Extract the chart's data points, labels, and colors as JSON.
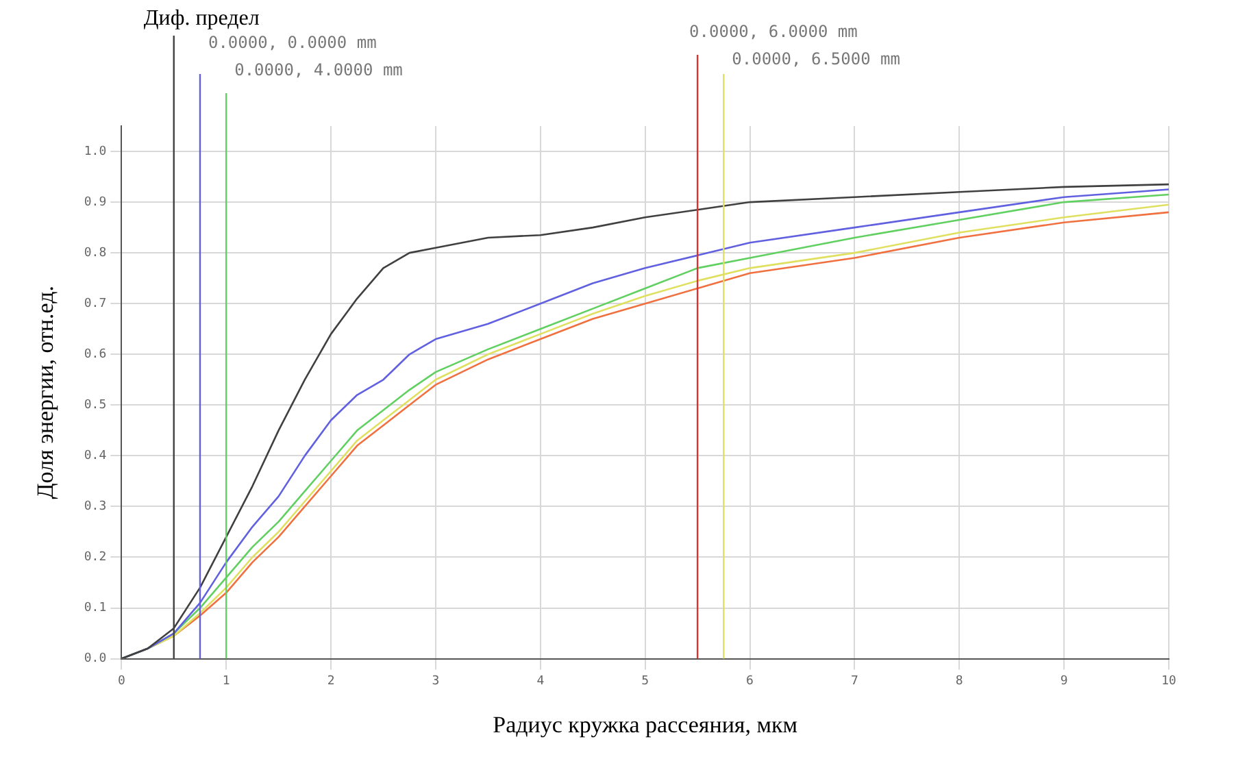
{
  "chart_data": {
    "type": "line",
    "xlabel": "Радиус кружка рассеяния, мкм",
    "ylabel": "Доля энергии, отн.ед.",
    "x": [
      0,
      0.25,
      0.5,
      0.75,
      1,
      1.25,
      1.5,
      1.75,
      2,
      2.25,
      2.5,
      2.75,
      3,
      3.5,
      4,
      4.5,
      5,
      5.5,
      6,
      7,
      8,
      9,
      10
    ],
    "series": [
      {
        "color": "#404040",
        "values": [
          0,
          0.02,
          0.06,
          0.14,
          0.24,
          0.34,
          0.45,
          0.55,
          0.64,
          0.71,
          0.77,
          0.8,
          0.81,
          0.83,
          0.835,
          0.85,
          0.87,
          0.885,
          0.9,
          0.91,
          0.92,
          0.93,
          0.935
        ]
      },
      {
        "color": "#6060e0",
        "values": [
          0,
          0.02,
          0.05,
          0.11,
          0.19,
          0.26,
          0.32,
          0.4,
          0.47,
          0.52,
          0.55,
          0.6,
          0.63,
          0.66,
          0.7,
          0.74,
          0.77,
          0.795,
          0.82,
          0.85,
          0.88,
          0.91,
          0.925
        ]
      },
      {
        "color": "#60d060",
        "values": [
          0,
          0.02,
          0.05,
          0.1,
          0.16,
          0.22,
          0.27,
          0.33,
          0.39,
          0.45,
          0.49,
          0.53,
          0.565,
          0.61,
          0.65,
          0.69,
          0.73,
          0.77,
          0.79,
          0.83,
          0.865,
          0.9,
          0.915
        ]
      },
      {
        "color": "#e0e060",
        "values": [
          0,
          0.02,
          0.045,
          0.09,
          0.14,
          0.2,
          0.25,
          0.31,
          0.37,
          0.43,
          0.47,
          0.51,
          0.55,
          0.6,
          0.64,
          0.68,
          0.715,
          0.745,
          0.77,
          0.8,
          0.84,
          0.87,
          0.895
        ]
      },
      {
        "color": "#f07040",
        "values": [
          0,
          0.02,
          0.045,
          0.085,
          0.13,
          0.19,
          0.24,
          0.3,
          0.36,
          0.42,
          0.46,
          0.5,
          0.54,
          0.59,
          0.63,
          0.67,
          0.7,
          0.73,
          0.76,
          0.79,
          0.83,
          0.86,
          0.88
        ]
      }
    ],
    "xlim": [
      0,
      10
    ],
    "xticks": [
      0,
      1,
      2,
      3,
      4,
      5,
      6,
      7,
      8,
      9,
      10
    ],
    "ylim": [
      0,
      1.05
    ],
    "yticks": [
      {
        "value": 0,
        "label": "0.0"
      },
      {
        "value": 0.1,
        "label": "0.1"
      },
      {
        "value": 0.2,
        "label": "0.2"
      },
      {
        "value": 0.3,
        "label": "0.3"
      },
      {
        "value": 0.4,
        "label": "0.4"
      },
      {
        "value": 0.5,
        "label": "0.5"
      },
      {
        "value": 0.6,
        "label": "0.6"
      },
      {
        "value": 0.7,
        "label": "0.7"
      },
      {
        "value": 0.8,
        "label": "0.8"
      },
      {
        "value": 0.9,
        "label": "0.9"
      },
      {
        "value": 1,
        "label": "1.0"
      }
    ],
    "ref_lines": [
      {
        "axis": "x",
        "value": 0.5,
        "label": "Диф. предел",
        "color": "#404040"
      },
      {
        "axis": "x",
        "value": 0.75,
        "label": "0.0000, 0.0000 mm",
        "color": "#6060e0"
      },
      {
        "axis": "x",
        "value": 1,
        "label": "0.0000, 4.0000 mm",
        "color": "#60d060"
      },
      {
        "axis": "x",
        "value": 5.5,
        "label": "0.0000, 6.0000 mm",
        "color": "#e03030"
      },
      {
        "axis": "x",
        "value": 5.75,
        "label": "0.0000, 6.5000 mm",
        "color": "#e0e060"
      }
    ],
    "grid": true,
    "legend": false,
    "marker": "none",
    "line_style": "solid"
  }
}
